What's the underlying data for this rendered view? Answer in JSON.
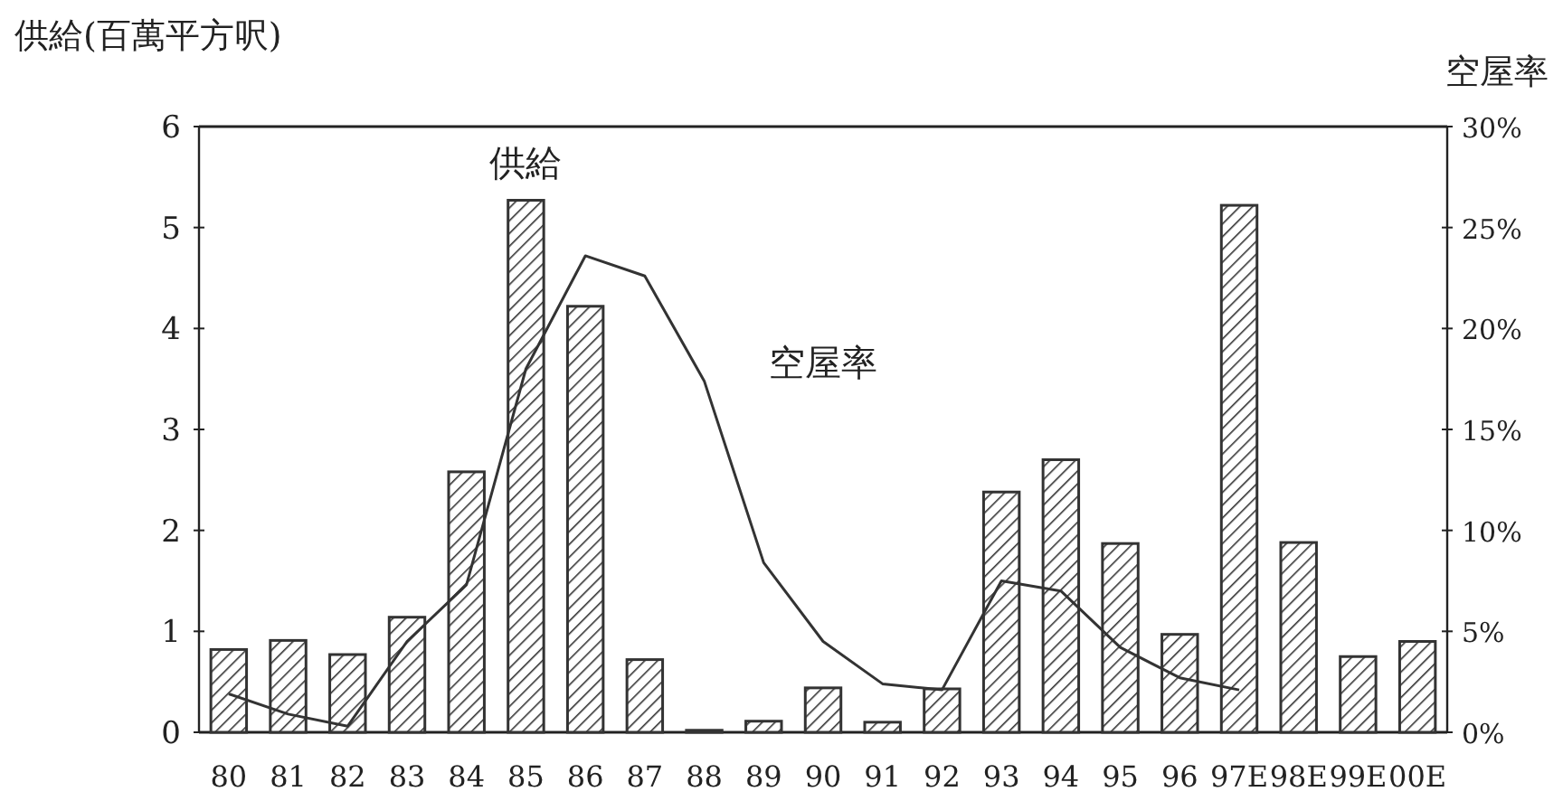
{
  "chart_data": {
    "type": "bar",
    "ylabel": "供給(百萬平方呎)",
    "y2label": "空屋率",
    "categories": [
      "80",
      "81",
      "82",
      "83",
      "84",
      "85",
      "86",
      "87",
      "88",
      "89",
      "90",
      "91",
      "92",
      "93",
      "94",
      "95",
      "96",
      "97E",
      "98E",
      "99E",
      "00E"
    ],
    "series": [
      {
        "name": "供給",
        "color": "#333333",
        "values": [
          0.82,
          0.91,
          0.77,
          1.14,
          2.58,
          5.27,
          4.22,
          0.72,
          0.02,
          0.11,
          0.44,
          0.1,
          0.43,
          2.38,
          2.7,
          1.87,
          0.97,
          5.22,
          1.88,
          0.75,
          0.9
        ]
      },
      {
        "name": "空屋率",
        "type": "line",
        "axis": "y2",
        "color": "#333333",
        "values": [
          1.9,
          0.9,
          0.3,
          4.5,
          7.3,
          18,
          23.6,
          22.6,
          17.4,
          8.4,
          4.5,
          2.4,
          2.1,
          7.5,
          7.0,
          4.2,
          2.7,
          2.1,
          null,
          null,
          null
        ]
      }
    ],
    "ylim": [
      0,
      6
    ],
    "yticks": [
      0,
      1,
      2,
      3,
      4,
      5,
      6
    ],
    "y2lim": [
      0,
      30
    ],
    "y2ticks": [
      {
        "value": 0,
        "label": "0%"
      },
      {
        "value": 5,
        "label": "5%"
      },
      {
        "value": 10,
        "label": "10%"
      },
      {
        "value": 15,
        "label": "15%"
      },
      {
        "value": 20,
        "label": "20%"
      },
      {
        "value": 25,
        "label": "25%"
      },
      {
        "value": 30,
        "label": "30%"
      }
    ],
    "grid": false
  }
}
